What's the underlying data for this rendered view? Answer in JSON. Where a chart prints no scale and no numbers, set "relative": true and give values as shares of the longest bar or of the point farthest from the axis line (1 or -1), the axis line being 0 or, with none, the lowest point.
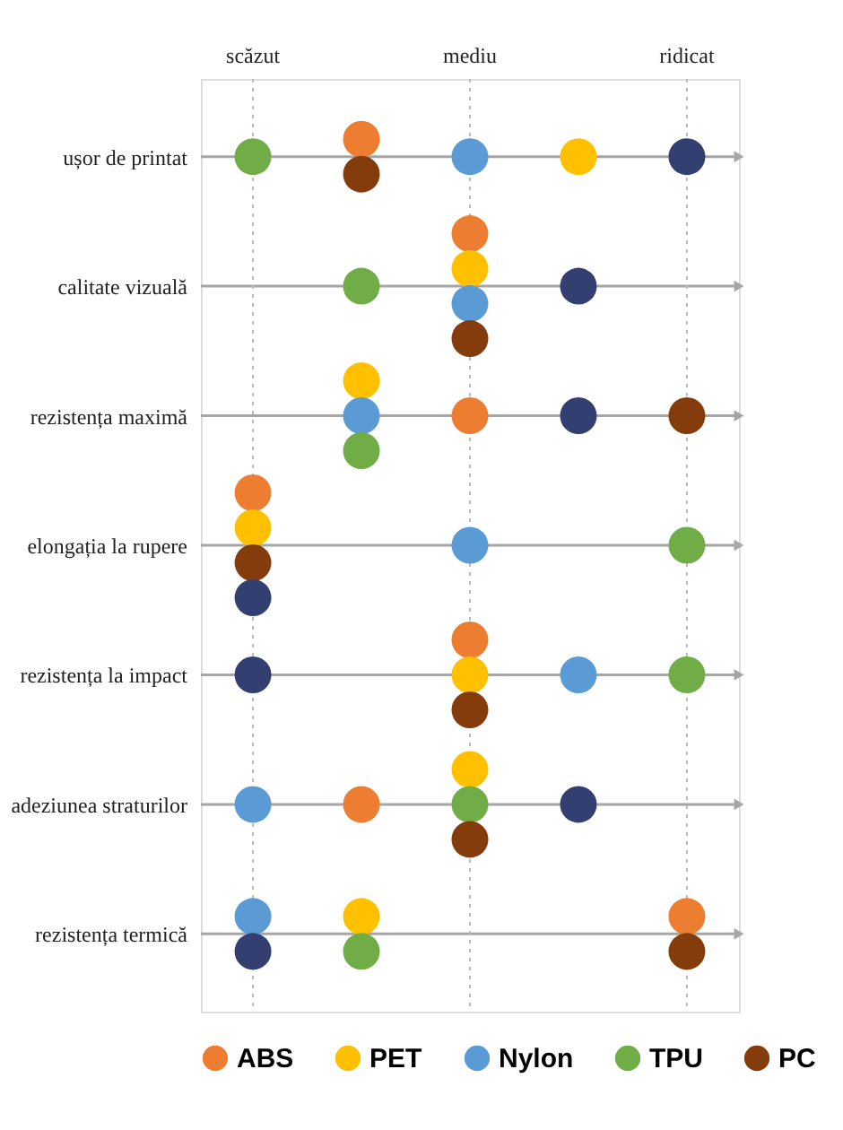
{
  "chart_data": {
    "type": "scatter",
    "orientation": "horizontal",
    "relative": true,
    "categories": [
      "ușor de printat",
      "calitate vizuală",
      "rezistența maximă",
      "elongația la rupere",
      "rezistența la impact",
      "adeziunea straturilor",
      "rezistența termică"
    ],
    "ref_lines": [
      {
        "axis": "x",
        "value": 0,
        "label": "scăzut",
        "color": "#bbbbbb",
        "line_style": "dotted"
      },
      {
        "axis": "x",
        "value": 0.5,
        "label": "mediu",
        "color": "#bbbbbb",
        "line_style": "dotted"
      },
      {
        "axis": "x",
        "value": 1,
        "label": "ridicat",
        "color": "#bbbbbb",
        "line_style": "dotted"
      }
    ],
    "grid": "y",
    "legend": "bottom",
    "marker": "circle",
    "series": [
      {
        "name": "ABS",
        "color": "#ed7d31",
        "values": [
          0.25,
          0.5,
          0.5,
          0,
          0.5,
          0.25,
          1
        ]
      },
      {
        "name": "PET",
        "color": "#ffc000",
        "values": [
          0.75,
          0.5,
          0.25,
          0,
          0.5,
          0.5,
          0.25
        ]
      },
      {
        "name": "Nylon",
        "color": "#5b9bd5",
        "values": [
          0.5,
          0.5,
          0.25,
          0.5,
          0.75,
          0,
          0
        ]
      },
      {
        "name": "TPU",
        "color": "#70ad47",
        "values": [
          0,
          0.25,
          0.25,
          1,
          1,
          0.5,
          0.25
        ]
      },
      {
        "name": "PC",
        "color": "#843c0c",
        "values": [
          0.25,
          0.5,
          1,
          0,
          0.5,
          0.5,
          1
        ]
      },
      {
        "color": "#333f70",
        "values": [
          1,
          0.75,
          0.75,
          0,
          0,
          0.75,
          0
        ]
      }
    ]
  }
}
